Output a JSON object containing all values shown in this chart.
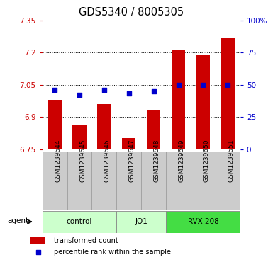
{
  "title": "GDS5340 / 8005305",
  "samples": [
    "GSM1239644",
    "GSM1239645",
    "GSM1239646",
    "GSM1239647",
    "GSM1239648",
    "GSM1239649",
    "GSM1239650",
    "GSM1239651"
  ],
  "bar_values": [
    6.98,
    6.86,
    6.96,
    6.8,
    6.93,
    7.21,
    7.19,
    7.27
  ],
  "percentile_values": [
    46,
    42,
    46,
    43,
    45,
    50,
    50,
    50
  ],
  "bar_color": "#cc0000",
  "dot_color": "#0000cc",
  "ylim_left": [
    6.75,
    7.35
  ],
  "ylim_right": [
    0,
    100
  ],
  "yticks_left": [
    6.75,
    6.9,
    7.05,
    7.2,
    7.35
  ],
  "ytick_labels_left": [
    "6.75",
    "6.9",
    "7.05",
    "7.2",
    "7.35"
  ],
  "yticks_right": [
    0,
    25,
    50,
    75,
    100
  ],
  "ytick_labels_right": [
    "0",
    "25",
    "50",
    "75",
    "100%"
  ],
  "groups": [
    {
      "label": "control",
      "start": 0,
      "end": 2,
      "color": "#ccffcc"
    },
    {
      "label": "JQ1",
      "start": 3,
      "end": 4,
      "color": "#ccffcc"
    },
    {
      "label": "RVX-208",
      "start": 5,
      "end": 7,
      "color": "#44dd44"
    }
  ],
  "agent_label": "agent",
  "legend_bar_label": "transformed count",
  "legend_dot_label": "percentile rank within the sample",
  "bar_color_legend": "#cc0000",
  "dot_color_legend": "#0000cc",
  "sample_bg": "#cccccc",
  "bar_width": 0.55,
  "x_tick_label_fontsize": 6.5,
  "title_fontsize": 10.5,
  "left_tick_color": "#cc0000",
  "right_tick_color": "#0000cc"
}
